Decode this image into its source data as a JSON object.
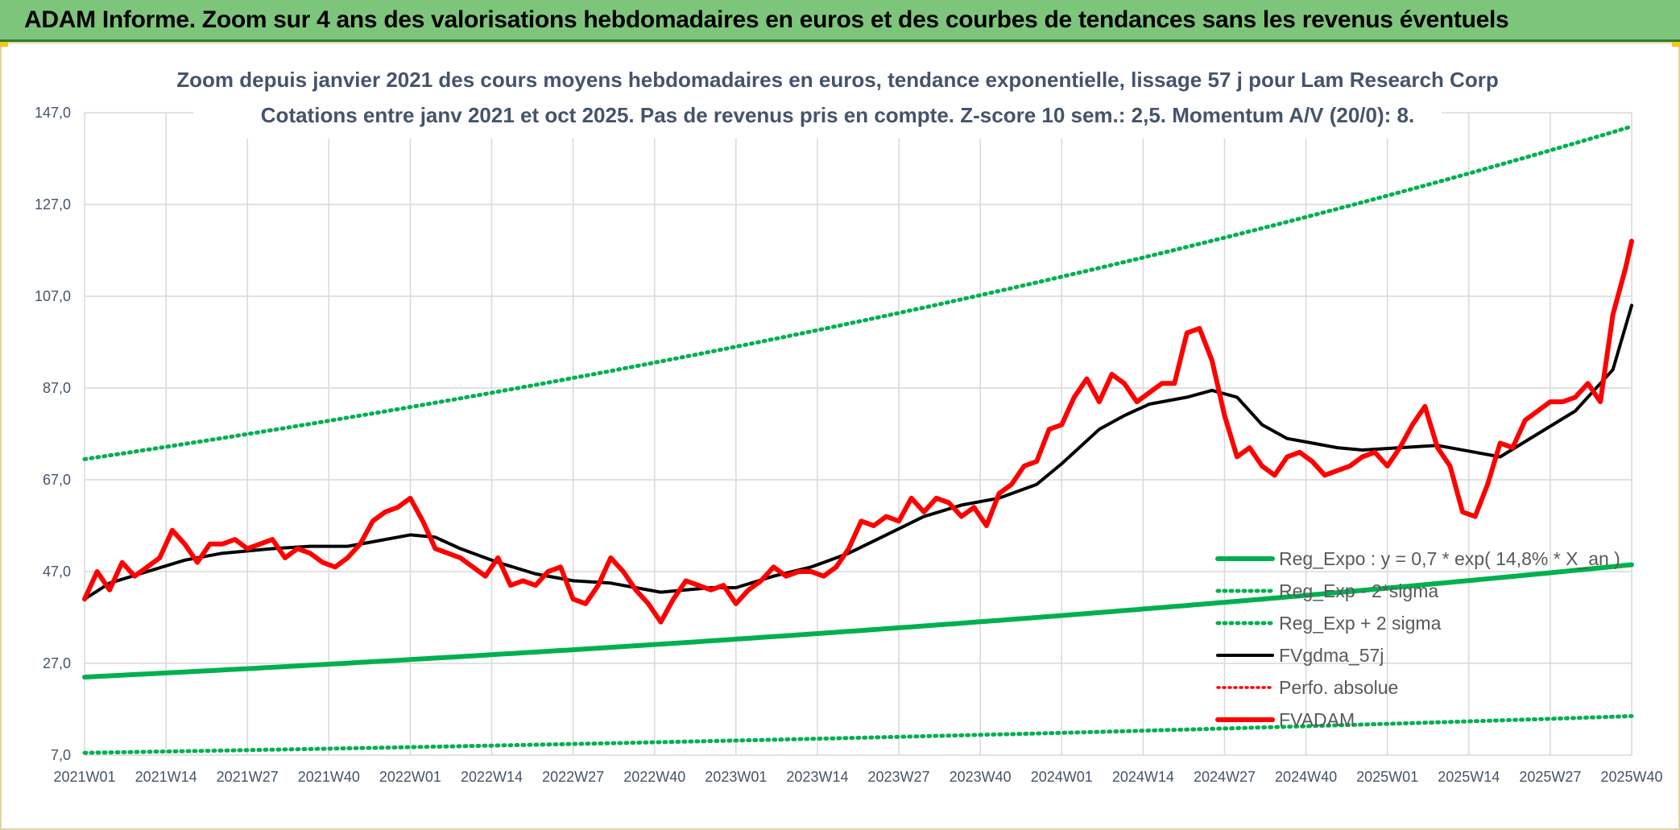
{
  "banner": {
    "title": "ADAM Informe. Zoom sur 4 ans des valorisations hebdomadaires en euros et des courbes de tendances sans les revenus éventuels"
  },
  "colors": {
    "banner_bg": "#7dc57a",
    "reg_green": "#00b050",
    "fvadam_red": "#ff0000",
    "fvgdma_black": "#000000",
    "title_text": "#44546a",
    "grid": "#d9d9d9"
  },
  "chart_data": {
    "type": "line",
    "title": "Zoom depuis janvier 2021 des cours moyens hebdomadaires en euros, tendance exponentielle, lissage 57 j pour Lam Research Corp",
    "subtitle": "Cotations entre janv 2021 et oct 2025. Pas de revenus pris en compte. Z-score 10 sem.: 2,5. Momentum A/V (20/0): 8.",
    "xlabel": "",
    "ylabel": "",
    "ylim": [
      7,
      147
    ],
    "yticks": [
      "147,0",
      "127,0",
      "107,0",
      "87,0",
      "67,0",
      "47,0",
      "27,0",
      "7,0"
    ],
    "yticks_values": [
      147,
      127,
      107,
      87,
      67,
      47,
      27,
      7
    ],
    "xlim": [
      0,
      247
    ],
    "xticks": [
      "2021W01",
      "2021W14",
      "2021W27",
      "2021W40",
      "2022W01",
      "2022W14",
      "2022W27",
      "2022W40",
      "2023W01",
      "2023W14",
      "2023W27",
      "2023W40",
      "2024W01",
      "2024W14",
      "2024W27",
      "2024W40",
      "2025W01",
      "2025W14",
      "2025W27",
      "2025W40"
    ],
    "xticks_index": [
      0,
      13,
      26,
      39,
      52,
      65,
      78,
      91,
      104,
      117,
      130,
      143,
      156,
      169,
      182,
      195,
      208,
      221,
      234,
      247
    ],
    "grid": true,
    "legend_position": "bottom-right",
    "series": [
      {
        "name": "Reg_Expo : y = 0,7 * exp( 14,8% *  X_an )",
        "style": "solid",
        "color": "#00b050",
        "x": [
          0,
          247
        ],
        "y": [
          24.0,
          48.5
        ],
        "curve": "exponential"
      },
      {
        "name": "Reg_Exp - 2*sigma",
        "style": "dotted",
        "color": "#00b050",
        "x": [
          0,
          247
        ],
        "y": [
          7.5,
          15.5
        ],
        "curve": "exponential"
      },
      {
        "name": "Reg_Exp + 2 sigma",
        "style": "dotted",
        "color": "#00b050",
        "x": [
          0,
          247
        ],
        "y": [
          71.5,
          144.0
        ],
        "curve": "exponential"
      },
      {
        "name": "FVgdma_57j",
        "style": "solid",
        "color": "#000000",
        "x": [
          0,
          4,
          10,
          16,
          22,
          30,
          36,
          42,
          46,
          52,
          56,
          60,
          66,
          72,
          78,
          84,
          88,
          92,
          96,
          100,
          104,
          110,
          116,
          122,
          128,
          134,
          140,
          146,
          152,
          156,
          162,
          166,
          170,
          176,
          180,
          184,
          188,
          192,
          196,
          200,
          204,
          210,
          216,
          222,
          226,
          232,
          238,
          244,
          247
        ],
        "y": [
          41.0,
          44.5,
          47.0,
          49.5,
          51.0,
          52.0,
          52.5,
          52.5,
          53.5,
          55.0,
          54.5,
          52.0,
          49.0,
          46.5,
          45.0,
          44.5,
          43.5,
          42.5,
          43.0,
          43.5,
          43.5,
          46.0,
          48.0,
          51.0,
          55.0,
          59.0,
          61.5,
          63.0,
          66.0,
          70.5,
          78.0,
          81.0,
          83.5,
          85.0,
          86.5,
          85.0,
          79.0,
          76.0,
          75.0,
          74.0,
          73.5,
          74.0,
          74.5,
          73.0,
          72.0,
          77.0,
          82.0,
          91.0,
          105.0
        ]
      },
      {
        "name": "Perfo. absolue",
        "style": "dotted",
        "color": "#ff0000",
        "x": [],
        "y": []
      },
      {
        "name": "FVADAM",
        "style": "solid",
        "color": "#ff0000",
        "x": [
          0,
          2,
          4,
          6,
          8,
          10,
          12,
          14,
          16,
          18,
          20,
          22,
          24,
          26,
          28,
          30,
          32,
          34,
          36,
          38,
          40,
          42,
          44,
          46,
          48,
          50,
          52,
          54,
          56,
          58,
          60,
          62,
          64,
          66,
          68,
          70,
          72,
          74,
          76,
          78,
          80,
          82,
          84,
          86,
          88,
          90,
          92,
          94,
          96,
          98,
          100,
          102,
          104,
          106,
          108,
          110,
          112,
          114,
          116,
          118,
          120,
          122,
          124,
          126,
          128,
          130,
          132,
          134,
          136,
          138,
          140,
          142,
          144,
          146,
          148,
          150,
          152,
          154,
          156,
          158,
          160,
          162,
          164,
          166,
          168,
          170,
          172,
          174,
          176,
          178,
          180,
          182,
          184,
          186,
          188,
          190,
          192,
          194,
          196,
          198,
          200,
          202,
          204,
          206,
          208,
          210,
          212,
          214,
          216,
          218,
          220,
          222,
          224,
          226,
          228,
          230,
          232,
          234,
          236,
          238,
          240,
          242,
          244,
          246,
          247
        ],
        "y": [
          41,
          47,
          43,
          49,
          46,
          48,
          50,
          56,
          53,
          49,
          53,
          53,
          54,
          52,
          53,
          54,
          50,
          52,
          51,
          49,
          48,
          50,
          53,
          58,
          60,
          61,
          63,
          58,
          52,
          51,
          50,
          48,
          46,
          50,
          44,
          45,
          44,
          47,
          48,
          41,
          40,
          44,
          50,
          47,
          43,
          40,
          36,
          41,
          45,
          44,
          43,
          44,
          40,
          43,
          45,
          48,
          46,
          47,
          47,
          46,
          48,
          52,
          58,
          57,
          59,
          58,
          63,
          60,
          63,
          62,
          59,
          61,
          57,
          64,
          66,
          70,
          71,
          78,
          79,
          85,
          89,
          84,
          90,
          88,
          84,
          86,
          88,
          88,
          99,
          100,
          93,
          81,
          72,
          74,
          70,
          68,
          72,
          73,
          71,
          68,
          69,
          70,
          72,
          73,
          70,
          74,
          79,
          83,
          74,
          70,
          60,
          59,
          66,
          75,
          74,
          80,
          82,
          84,
          84,
          85,
          88,
          84,
          103,
          113,
          119
        ]
      }
    ]
  }
}
